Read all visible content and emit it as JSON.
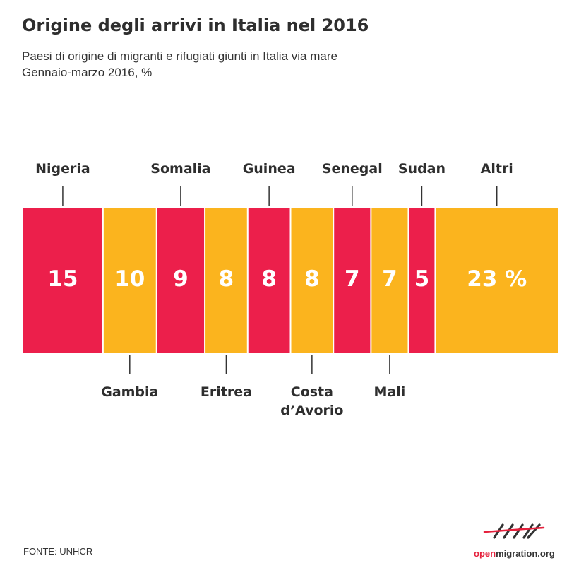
{
  "header": {
    "title": "Origine degli arrivi in Italia nel 2016",
    "subtitle_line1": "Paesi di origine di migranti e rifugiati giunti in Italia via mare",
    "subtitle_line2": "Gennaio-marzo 2016, %"
  },
  "footer": {
    "source": "FONTE: UNHCR",
    "logo_open": "open",
    "logo_rest": "migration.org"
  },
  "colors": {
    "red": "#ec1f4b",
    "yellow": "#fbb41e",
    "text": "#2e2e2e",
    "tick": "#333333"
  },
  "chart_data": {
    "type": "bar",
    "orientation": "stacked-horizontal",
    "unit": "%",
    "categories": [
      "Nigeria",
      "Gambia",
      "Somalia",
      "Eritrea",
      "Guinea",
      "Costa d’Avorio",
      "Senegal",
      "Mali",
      "Sudan",
      "Altri"
    ],
    "values": [
      15,
      10,
      9,
      8,
      8,
      8,
      7,
      7,
      5,
      23
    ],
    "value_labels": [
      "15",
      "10",
      "9",
      "8",
      "8",
      "8",
      "7",
      "7",
      "5",
      "23 %"
    ],
    "label_lines": [
      [
        "Nigeria"
      ],
      [
        "Gambia"
      ],
      [
        "Somalia"
      ],
      [
        "Eritrea"
      ],
      [
        "Guinea"
      ],
      [
        "Costa",
        "d’Avorio"
      ],
      [
        "Senegal"
      ],
      [
        "Mali"
      ],
      [
        "Sudan"
      ],
      [
        "Altri"
      ]
    ],
    "label_side": [
      "top",
      "bottom",
      "top",
      "bottom",
      "top",
      "bottom",
      "top",
      "bottom",
      "top",
      "top"
    ],
    "segment_colors": [
      "red",
      "yellow",
      "red",
      "yellow",
      "red",
      "yellow",
      "red",
      "yellow",
      "red",
      "yellow"
    ]
  }
}
